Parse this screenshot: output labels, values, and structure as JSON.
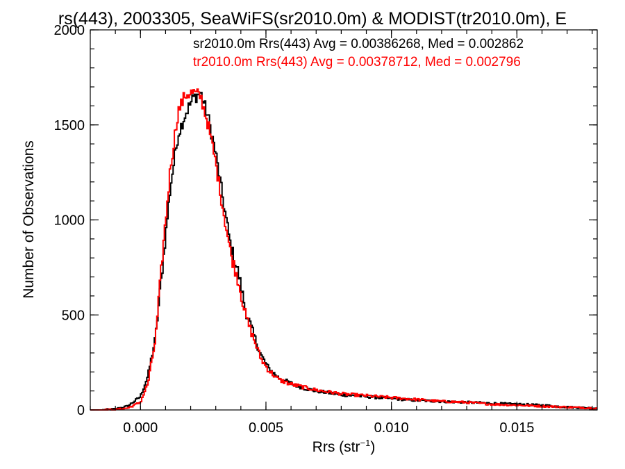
{
  "chart_data": {
    "type": "line",
    "title": "rs(443), 2003305, SeaWiFS(sr2010.0m) & MODIST(tr2010.0m), E",
    "xlabel": "Rrs (str",
    "xlabel_sup": "−1",
    "xlabel_end": ")",
    "ylabel": "Number of Observations",
    "xlim": [
      -0.002,
      0.0182
    ],
    "ylim": [
      0,
      2000
    ],
    "xticks": [
      0.0,
      0.005,
      0.01,
      0.015
    ],
    "xtick_labels": [
      "0.000",
      "0.005",
      "0.010",
      "0.015"
    ],
    "yticks": [
      0,
      500,
      1000,
      1500,
      2000
    ],
    "ytick_labels": [
      "0",
      "500",
      "1000",
      "1500",
      "2000"
    ],
    "grid": false,
    "legend_position": "top-right",
    "series": [
      {
        "name": "sr2010.0m Rrs(443) Avg = 0.00386268, Med = 0.002862",
        "color": "#000000",
        "x": [
          -0.0015,
          -0.001,
          -0.0005,
          0.0,
          0.0003,
          0.0006,
          0.0009,
          0.0012,
          0.0015,
          0.0018,
          0.0021,
          0.0024,
          0.0027,
          0.003,
          0.0033,
          0.0036,
          0.0039,
          0.0042,
          0.0045,
          0.0048,
          0.0051,
          0.0055,
          0.006,
          0.0065,
          0.007,
          0.008,
          0.009,
          0.01,
          0.011,
          0.012,
          0.013,
          0.014,
          0.015,
          0.016,
          0.017,
          0.018
        ],
        "y": [
          0,
          5,
          20,
          70,
          180,
          380,
          780,
          1180,
          1450,
          1560,
          1640,
          1670,
          1540,
          1350,
          1100,
          860,
          720,
          520,
          400,
          290,
          220,
          170,
          140,
          115,
          100,
          80,
          70,
          60,
          50,
          45,
          40,
          35,
          30,
          25,
          15,
          10
        ]
      },
      {
        "name": "tr2010.0m Rrs(443) Avg = 0.00378712, Med = 0.002796",
        "color": "#ff0000",
        "x": [
          -0.0015,
          -0.001,
          -0.0005,
          0.0,
          0.0003,
          0.0006,
          0.0009,
          0.0012,
          0.0015,
          0.0018,
          0.0021,
          0.0024,
          0.0027,
          0.003,
          0.0033,
          0.0036,
          0.0039,
          0.0042,
          0.0045,
          0.0048,
          0.0051,
          0.0055,
          0.006,
          0.0065,
          0.007,
          0.008,
          0.009,
          0.01,
          0.011,
          0.012,
          0.013,
          0.014,
          0.015,
          0.016,
          0.017,
          0.018
        ],
        "y": [
          0,
          2,
          10,
          40,
          140,
          370,
          850,
          1280,
          1570,
          1660,
          1670,
          1650,
          1500,
          1300,
          1050,
          820,
          680,
          490,
          380,
          270,
          210,
          160,
          135,
          120,
          105,
          85,
          75,
          65,
          55,
          45,
          40,
          30,
          25,
          20,
          15,
          10
        ]
      }
    ]
  }
}
